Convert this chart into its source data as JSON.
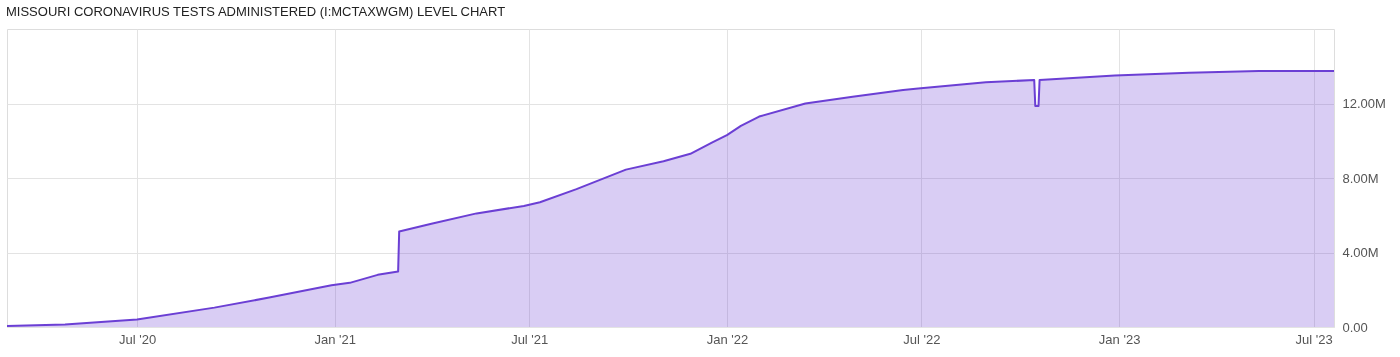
{
  "chart_data": {
    "type": "area",
    "title": "MISSOURI CORONAVIRUS TESTS ADMINISTERED (I:MCTAXWGM) LEVEL CHART",
    "x": [
      "2020-03-02",
      "2020-04-25",
      "2020-07-01",
      "2020-09-11",
      "2020-11-01",
      "2020-12-29",
      "2021-01-15",
      "2021-02-10",
      "2021-03-01",
      "2021-03-02",
      "2021-04-01",
      "2021-05-13",
      "2021-06-26",
      "2021-07-11",
      "2021-08-14",
      "2021-09-29",
      "2021-11-03",
      "2021-11-28",
      "2021-12-18",
      "2022-01-01",
      "2022-01-14",
      "2022-01-31",
      "2022-03-15",
      "2022-04-28",
      "2022-06-14",
      "2022-06-28",
      "2022-08-30",
      "2022-10-14",
      "2022-10-15",
      "2022-10-18",
      "2022-10-19",
      "2022-12-28",
      "2023-03-07",
      "2023-05-11",
      "2023-07-20"
    ],
    "series": [
      {
        "color": "#6b3fd4",
        "values": [
          0.05,
          0.14,
          0.4,
          1.04,
          1.58,
          2.24,
          2.37,
          2.8,
          2.98,
          5.13,
          5.54,
          6.1,
          6.5,
          6.7,
          7.4,
          8.45,
          8.9,
          9.3,
          9.9,
          10.3,
          10.8,
          11.3,
          12.0,
          12.36,
          12.73,
          12.8,
          13.14,
          13.26,
          11.87,
          11.87,
          13.26,
          13.5,
          13.65,
          13.75,
          13.75
        ]
      }
    ],
    "xlim": [
      "2020-03-02",
      "2023-07-20"
    ],
    "xticks": [
      {
        "value": "2020-07-01",
        "label": "Jul '20"
      },
      {
        "value": "2021-01-01",
        "label": "Jan '21"
      },
      {
        "value": "2021-07-01",
        "label": "Jul '21"
      },
      {
        "value": "2022-01-01",
        "label": "Jan '22"
      },
      {
        "value": "2022-07-01",
        "label": "Jul '22"
      },
      {
        "value": "2023-01-01",
        "label": "Jan '23"
      },
      {
        "value": "2023-07-01",
        "label": "Jul '23"
      }
    ],
    "ylim": [
      0,
      16
    ],
    "yticks": [
      {
        "value": 0,
        "label": "0.00"
      },
      {
        "value": 4,
        "label": "4.00M"
      },
      {
        "value": 8,
        "label": "8.00M"
      },
      {
        "value": 12,
        "label": "12.00M"
      }
    ],
    "grid": true
  }
}
